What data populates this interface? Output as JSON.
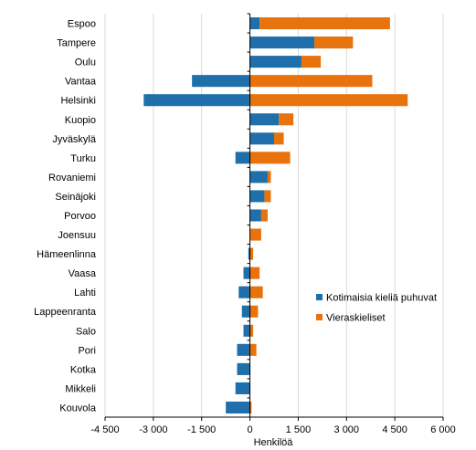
{
  "chart_data": {
    "type": "bar",
    "orientation": "horizontal",
    "stacked": true,
    "title": "",
    "xlabel": "Henkilöä",
    "ylabel": "",
    "xlim": [
      -4500,
      6000
    ],
    "xticks": [
      -4500,
      -3000,
      -1500,
      0,
      1500,
      3000,
      4500,
      6000
    ],
    "xtick_labels": [
      "-4 500",
      "-3 000",
      "-1 500",
      "0",
      "1 500",
      "3 000",
      "4 500",
      "6 000"
    ],
    "grid": "vertical",
    "legend_position": "right-center",
    "categories": [
      "Espoo",
      "Tampere",
      "Oulu",
      "Vantaa",
      "Helsinki",
      "Kuopio",
      "Jyväskylä",
      "Turku",
      "Rovaniemi",
      "Seinäjoki",
      "Porvoo",
      "Joensuu",
      "Hämeenlinna",
      "Vaasa",
      "Lahti",
      "Lappeenranta",
      "Salo",
      "Pori",
      "Kotka",
      "Mikkeli",
      "Kouvola"
    ],
    "series": [
      {
        "name": "Kotimaisia kieliä puhuvat",
        "color": "#1f6fab",
        "values": [
          300,
          2000,
          1600,
          -1800,
          -3300,
          900,
          750,
          -450,
          550,
          450,
          350,
          0,
          -50,
          -200,
          -350,
          -250,
          -200,
          -400,
          -400,
          -450,
          -750
        ]
      },
      {
        "name": "Vieraskieliset",
        "color": "#e8720c",
        "values": [
          4050,
          1200,
          600,
          3800,
          4900,
          450,
          300,
          1250,
          100,
          200,
          200,
          350,
          100,
          300,
          400,
          250,
          100,
          200,
          0,
          0,
          50
        ]
      }
    ]
  }
}
